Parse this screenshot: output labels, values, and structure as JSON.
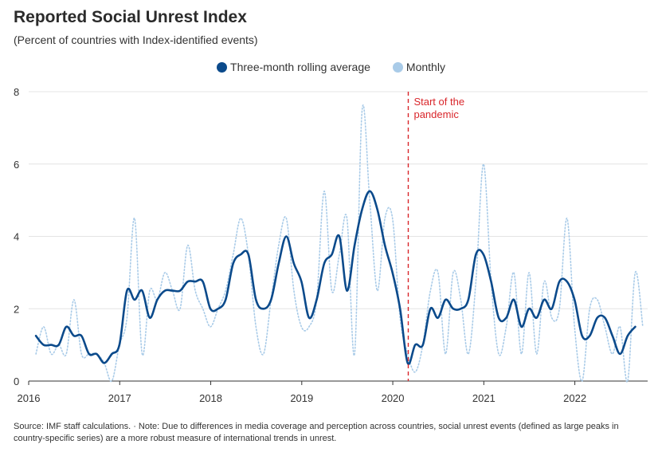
{
  "header": {
    "title": "Reported Social Unrest Index",
    "subtitle": "(Percent of countries with Index-identified events)"
  },
  "footer": {
    "note": "Source: IMF staff calculations. · Note: Due to differences in media coverage and perception across countries, social unrest events (defined as large peaks in country-specific series) are a more robust measure of international trends in unrest."
  },
  "colors": {
    "rolling": "#0b4a8b",
    "monthly": "#a9cbe8",
    "annotation": "#d9262b"
  },
  "chart_data": {
    "type": "line",
    "title": "Reported Social Unrest Index",
    "subtitle": "(Percent of countries with Index-identified events)",
    "xlabel": "",
    "ylabel": "",
    "xlim": [
      2016,
      2022.8
    ],
    "ylim": [
      0,
      8
    ],
    "xticks": [
      "2016",
      "2017",
      "2018",
      "2019",
      "2020",
      "2021",
      "2022"
    ],
    "yticks": [
      "0",
      "2",
      "4",
      "6",
      "8"
    ],
    "legend_position": "top-center",
    "annotation": {
      "x": 2020.17,
      "label_line1": "Start of the",
      "label_line2": "pandemic"
    },
    "x_start": 2016.08,
    "x_step": 0.083333,
    "series": [
      {
        "name": "Three-month rolling average",
        "style": "solid",
        "values": [
          1.25,
          1.0,
          1.0,
          1.0,
          1.5,
          1.25,
          1.25,
          0.75,
          0.75,
          0.5,
          0.75,
          1.0,
          2.5,
          2.25,
          2.5,
          1.75,
          2.25,
          2.5,
          2.5,
          2.5,
          2.75,
          2.75,
          2.75,
          2.0,
          2.0,
          2.25,
          3.25,
          3.5,
          3.5,
          2.25,
          2.0,
          2.25,
          3.25,
          4.0,
          3.25,
          2.75,
          1.75,
          2.25,
          3.25,
          3.5,
          4.0,
          2.5,
          3.75,
          4.75,
          5.25,
          4.75,
          3.75,
          3.0,
          2.0,
          0.5,
          1.0,
          1.0,
          2.0,
          1.75,
          2.25,
          2.0,
          2.0,
          2.25,
          3.5,
          3.5,
          2.75,
          1.75,
          1.75,
          2.25,
          1.5,
          2.0,
          1.75,
          2.25,
          2.0,
          2.75,
          2.75,
          2.25,
          1.25,
          1.25,
          1.75,
          1.75,
          1.25,
          0.75,
          1.25,
          1.5
        ]
      },
      {
        "name": "Monthly",
        "style": "dotted",
        "values": [
          0.75,
          1.5,
          0.75,
          1.0,
          0.75,
          2.25,
          0.75,
          0.75,
          0.75,
          0.5,
          0.0,
          1.0,
          1.75,
          4.5,
          0.75,
          2.5,
          2.25,
          3.0,
          2.5,
          2.0,
          3.75,
          2.5,
          2.0,
          1.5,
          2.0,
          2.5,
          3.5,
          4.5,
          3.5,
          1.5,
          0.75,
          2.25,
          3.75,
          4.5,
          2.5,
          1.5,
          1.5,
          2.25,
          5.25,
          2.5,
          3.5,
          4.5,
          0.75,
          7.5,
          5.0,
          2.5,
          4.5,
          4.5,
          1.75,
          0.75,
          0.25,
          1.0,
          2.5,
          3.0,
          0.75,
          3.0,
          2.25,
          0.75,
          2.75,
          6.0,
          2.75,
          0.75,
          1.5,
          3.0,
          0.75,
          3.0,
          0.75,
          2.75,
          1.75,
          2.0,
          4.5,
          1.5,
          0.0,
          2.0,
          2.25,
          1.5,
          0.75,
          1.5,
          0.0,
          3.0,
          1.5
        ]
      }
    ]
  }
}
